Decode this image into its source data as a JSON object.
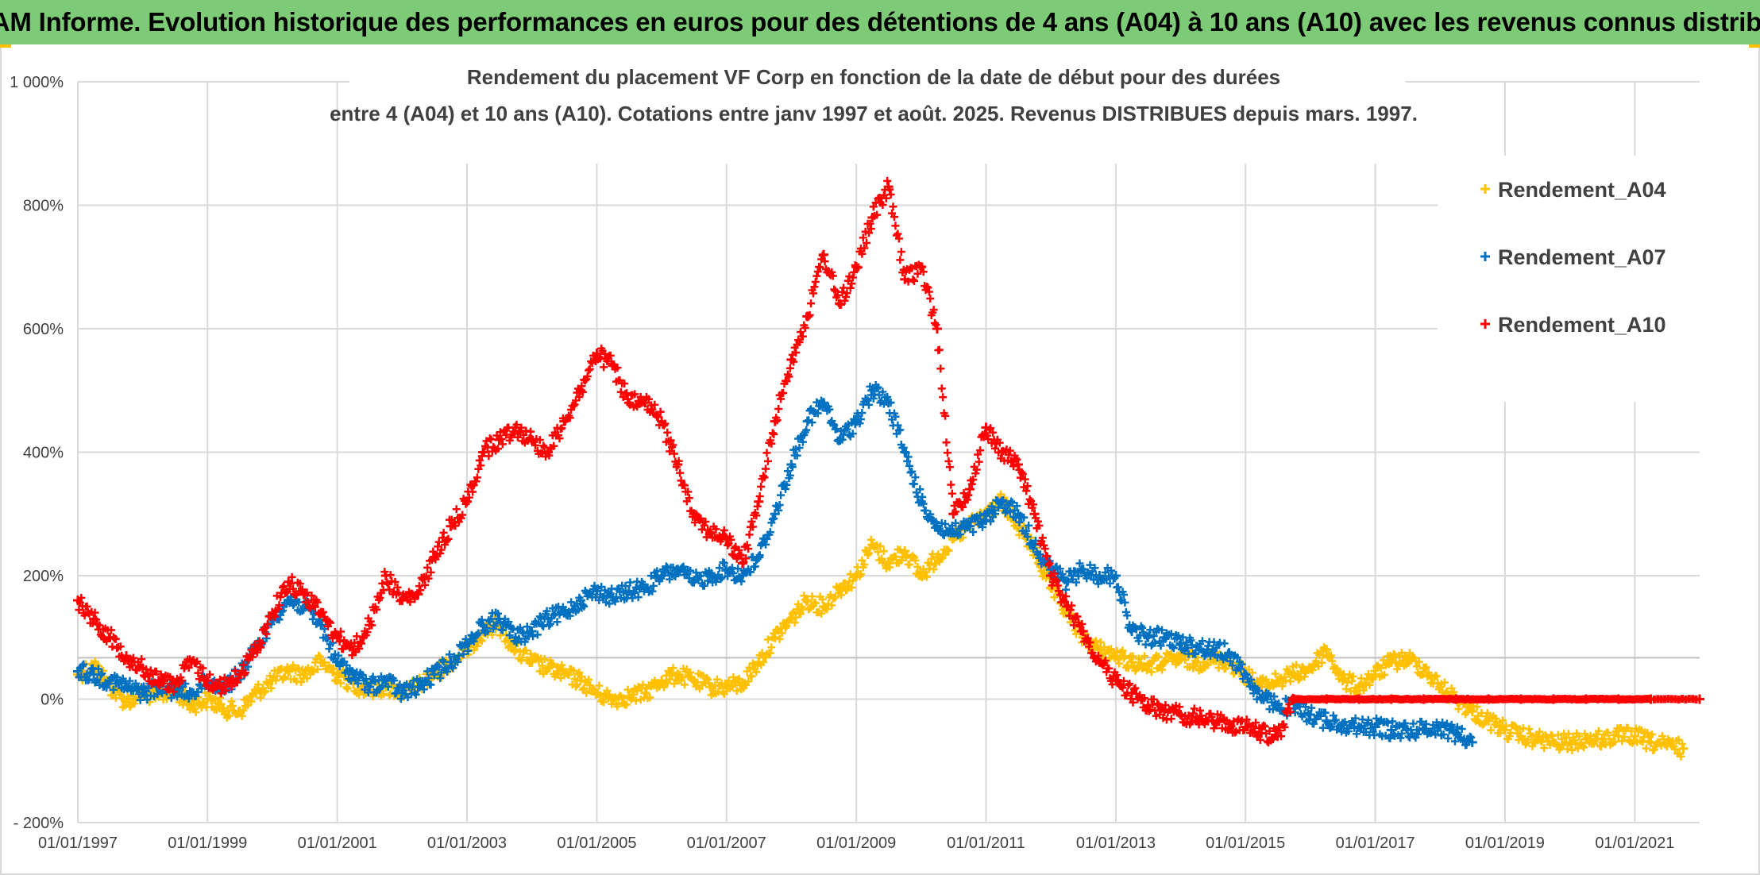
{
  "banner": {
    "title": "ADAM Informe. Evolution historique des performances en euros pour des détentions de 4 ans (A04) à 10 ans (A10) avec les revenus connus distribués"
  },
  "colors": {
    "banner_bg": "#7dcb76",
    "A04": "#ffc000",
    "A07": "#0070c0",
    "A10": "#ff0000",
    "gridline": "#d9d9d9"
  },
  "chart_data": {
    "type": "scatter",
    "title": "Rendement du placement VF Corp en fonction de la date de début pour des durées",
    "subtitle": "entre 4 (A04) et 10 ans (A10). Cotations entre janv 1997 et août. 2025. Revenus DISTRIBUES depuis mars. 1997.",
    "xlabel": "",
    "ylabel": "",
    "x_range": [
      "1997-01-01",
      "2022-01-01"
    ],
    "y_range": [
      -200,
      1000
    ],
    "y_ticks": [
      -200,
      0,
      200,
      400,
      600,
      800,
      1000
    ],
    "y_tick_labels": [
      "- 200%",
      "0%",
      "200%",
      "400%",
      "600%",
      "800%",
      "1 000%"
    ],
    "x_tick_labels": [
      "01/01/1997",
      "01/01/1999",
      "01/01/2001",
      "01/01/2003",
      "01/01/2005",
      "01/01/2007",
      "01/01/2009",
      "01/01/2011",
      "01/01/2013",
      "01/01/2015",
      "01/01/2017",
      "01/01/2019",
      "01/01/2021"
    ],
    "grid": true,
    "legend_position": "top-right",
    "marker": "+",
    "series": [
      {
        "name": "Rendement_A04",
        "color": "#ffc000",
        "points": [
          [
            "1997-01-01",
            40
          ],
          [
            "1997-04-01",
            55
          ],
          [
            "1997-07-01",
            20
          ],
          [
            "1997-10-01",
            -5
          ],
          [
            "1998-01-01",
            10
          ],
          [
            "1998-04-01",
            5
          ],
          [
            "1998-07-01",
            15
          ],
          [
            "1998-10-01",
            -10
          ],
          [
            "1999-01-01",
            0
          ],
          [
            "1999-04-01",
            -15
          ],
          [
            "1999-07-01",
            -20
          ],
          [
            "1999-10-01",
            10
          ],
          [
            "2000-01-01",
            30
          ],
          [
            "2000-04-01",
            45
          ],
          [
            "2000-07-01",
            40
          ],
          [
            "2000-10-01",
            60
          ],
          [
            "2001-01-01",
            40
          ],
          [
            "2001-04-01",
            25
          ],
          [
            "2001-07-01",
            15
          ],
          [
            "2001-10-01",
            20
          ],
          [
            "2002-01-01",
            10
          ],
          [
            "2002-04-01",
            20
          ],
          [
            "2002-07-01",
            40
          ],
          [
            "2002-10-01",
            60
          ],
          [
            "2003-01-01",
            80
          ],
          [
            "2003-04-01",
            110
          ],
          [
            "2003-07-01",
            120
          ],
          [
            "2003-10-01",
            80
          ],
          [
            "2004-01-01",
            60
          ],
          [
            "2004-04-01",
            50
          ],
          [
            "2004-07-01",
            40
          ],
          [
            "2004-10-01",
            30
          ],
          [
            "2005-01-01",
            10
          ],
          [
            "2005-04-01",
            0
          ],
          [
            "2005-07-01",
            5
          ],
          [
            "2005-10-01",
            10
          ],
          [
            "2006-01-01",
            30
          ],
          [
            "2006-04-01",
            40
          ],
          [
            "2006-07-01",
            30
          ],
          [
            "2006-10-01",
            20
          ],
          [
            "2007-01-01",
            20
          ],
          [
            "2007-04-01",
            25
          ],
          [
            "2007-07-01",
            60
          ],
          [
            "2007-10-01",
            100
          ],
          [
            "2008-01-01",
            130
          ],
          [
            "2008-04-01",
            160
          ],
          [
            "2008-07-01",
            150
          ],
          [
            "2008-10-01",
            180
          ],
          [
            "2009-01-01",
            200
          ],
          [
            "2009-04-01",
            250
          ],
          [
            "2009-07-01",
            220
          ],
          [
            "2009-10-01",
            240
          ],
          [
            "2010-01-01",
            200
          ],
          [
            "2010-04-01",
            230
          ],
          [
            "2010-07-01",
            260
          ],
          [
            "2010-10-01",
            280
          ],
          [
            "2011-01-01",
            300
          ],
          [
            "2011-04-01",
            320
          ],
          [
            "2011-07-01",
            280
          ],
          [
            "2011-10-01",
            240
          ],
          [
            "2012-01-01",
            180
          ],
          [
            "2012-04-01",
            140
          ],
          [
            "2012-07-01",
            100
          ],
          [
            "2012-10-01",
            80
          ],
          [
            "2013-01-01",
            70
          ],
          [
            "2013-04-01",
            60
          ],
          [
            "2013-07-01",
            55
          ],
          [
            "2013-10-01",
            60
          ],
          [
            "2014-01-01",
            65
          ],
          [
            "2014-04-01",
            60
          ],
          [
            "2014-07-01",
            65
          ],
          [
            "2014-10-01",
            60
          ],
          [
            "2015-01-01",
            40
          ],
          [
            "2015-04-01",
            20
          ],
          [
            "2015-07-01",
            30
          ],
          [
            "2015-10-01",
            40
          ],
          [
            "2016-01-01",
            50
          ],
          [
            "2016-04-01",
            80
          ],
          [
            "2016-07-01",
            30
          ],
          [
            "2016-10-01",
            20
          ],
          [
            "2017-01-01",
            40
          ],
          [
            "2017-04-01",
            60
          ],
          [
            "2017-07-01",
            65
          ],
          [
            "2017-10-01",
            50
          ],
          [
            "2018-01-01",
            20
          ],
          [
            "2018-04-01",
            0
          ],
          [
            "2018-07-01",
            -20
          ],
          [
            "2018-10-01",
            -35
          ],
          [
            "2019-01-01",
            -50
          ],
          [
            "2019-04-01",
            -60
          ],
          [
            "2019-07-01",
            -65
          ],
          [
            "2019-10-01",
            -70
          ],
          [
            "2020-01-01",
            -70
          ],
          [
            "2020-04-01",
            -65
          ],
          [
            "2020-07-01",
            -65
          ],
          [
            "2020-10-01",
            -60
          ],
          [
            "2021-01-01",
            -60
          ],
          [
            "2021-04-01",
            -70
          ],
          [
            "2021-07-01",
            -75
          ],
          [
            "2021-10-01",
            -80
          ]
        ]
      },
      {
        "name": "Rendement_A07",
        "color": "#0070c0",
        "points": [
          [
            "1997-01-01",
            45
          ],
          [
            "1997-04-01",
            40
          ],
          [
            "1997-07-01",
            30
          ],
          [
            "1997-10-01",
            20
          ],
          [
            "1998-01-01",
            10
          ],
          [
            "1998-04-01",
            20
          ],
          [
            "1998-07-01",
            15
          ],
          [
            "1998-10-01",
            10
          ],
          [
            "1999-01-01",
            30
          ],
          [
            "1999-04-01",
            20
          ],
          [
            "1999-07-01",
            40
          ],
          [
            "1999-10-01",
            80
          ],
          [
            "2000-01-01",
            130
          ],
          [
            "2000-04-01",
            160
          ],
          [
            "2000-07-01",
            150
          ],
          [
            "2000-10-01",
            120
          ],
          [
            "2001-01-01",
            60
          ],
          [
            "2001-04-01",
            40
          ],
          [
            "2001-07-01",
            20
          ],
          [
            "2001-10-01",
            30
          ],
          [
            "2002-01-01",
            10
          ],
          [
            "2002-04-01",
            20
          ],
          [
            "2002-07-01",
            40
          ],
          [
            "2002-10-01",
            60
          ],
          [
            "2003-01-01",
            90
          ],
          [
            "2003-04-01",
            120
          ],
          [
            "2003-07-01",
            130
          ],
          [
            "2003-10-01",
            100
          ],
          [
            "2004-01-01",
            110
          ],
          [
            "2004-04-01",
            130
          ],
          [
            "2004-07-01",
            140
          ],
          [
            "2004-10-01",
            160
          ],
          [
            "2005-01-01",
            175
          ],
          [
            "2005-04-01",
            165
          ],
          [
            "2005-07-01",
            175
          ],
          [
            "2005-10-01",
            180
          ],
          [
            "2006-01-01",
            200
          ],
          [
            "2006-04-01",
            210
          ],
          [
            "2006-07-01",
            190
          ],
          [
            "2006-10-01",
            200
          ],
          [
            "2007-01-01",
            210
          ],
          [
            "2007-04-01",
            200
          ],
          [
            "2007-07-01",
            230
          ],
          [
            "2007-10-01",
            300
          ],
          [
            "2008-01-01",
            380
          ],
          [
            "2008-04-01",
            450
          ],
          [
            "2008-07-01",
            480
          ],
          [
            "2008-10-01",
            420
          ],
          [
            "2009-01-01",
            450
          ],
          [
            "2009-04-01",
            500
          ],
          [
            "2009-07-01",
            480
          ],
          [
            "2009-10-01",
            400
          ],
          [
            "2010-01-01",
            320
          ],
          [
            "2010-04-01",
            280
          ],
          [
            "2010-07-01",
            270
          ],
          [
            "2010-10-01",
            280
          ],
          [
            "2011-01-01",
            290
          ],
          [
            "2011-04-01",
            320
          ],
          [
            "2011-07-01",
            300
          ],
          [
            "2011-10-01",
            250
          ],
          [
            "2012-01-01",
            210
          ],
          [
            "2012-04-01",
            190
          ],
          [
            "2012-07-01",
            210
          ],
          [
            "2012-10-01",
            200
          ],
          [
            "2013-01-01",
            200
          ],
          [
            "2013-04-01",
            110
          ],
          [
            "2013-07-01",
            100
          ],
          [
            "2013-10-01",
            100
          ],
          [
            "2014-01-01",
            90
          ],
          [
            "2014-04-01",
            85
          ],
          [
            "2014-07-01",
            80
          ],
          [
            "2014-10-01",
            75
          ],
          [
            "2015-01-01",
            40
          ],
          [
            "2015-04-01",
            0
          ],
          [
            "2015-07-01",
            -10
          ],
          [
            "2015-10-01",
            -15
          ],
          [
            "2016-01-01",
            -25
          ],
          [
            "2016-04-01",
            -35
          ],
          [
            "2016-07-01",
            -40
          ],
          [
            "2016-10-01",
            -45
          ],
          [
            "2017-01-01",
            -45
          ],
          [
            "2017-04-01",
            -50
          ],
          [
            "2017-07-01",
            -50
          ],
          [
            "2017-10-01",
            -48
          ],
          [
            "2018-01-01",
            -45
          ],
          [
            "2018-04-01",
            -55
          ],
          [
            "2018-07-01",
            -70
          ]
        ]
      },
      {
        "name": "Rendement_A10",
        "color": "#ff0000",
        "points": [
          [
            "1997-01-01",
            160
          ],
          [
            "1997-04-01",
            130
          ],
          [
            "1997-07-01",
            100
          ],
          [
            "1997-10-01",
            70
          ],
          [
            "1998-01-01",
            50
          ],
          [
            "1998-04-01",
            30
          ],
          [
            "1998-07-01",
            25
          ],
          [
            "1998-10-01",
            60
          ],
          [
            "1999-01-01",
            30
          ],
          [
            "1999-04-01",
            20
          ],
          [
            "1999-07-01",
            40
          ],
          [
            "1999-10-01",
            80
          ],
          [
            "2000-01-01",
            140
          ],
          [
            "2000-04-01",
            190
          ],
          [
            "2000-07-01",
            170
          ],
          [
            "2000-10-01",
            140
          ],
          [
            "2001-01-01",
            100
          ],
          [
            "2001-04-01",
            80
          ],
          [
            "2001-07-01",
            120
          ],
          [
            "2001-10-01",
            200
          ],
          [
            "2002-01-01",
            160
          ],
          [
            "2002-04-01",
            170
          ],
          [
            "2002-07-01",
            230
          ],
          [
            "2002-10-01",
            280
          ],
          [
            "2003-01-01",
            320
          ],
          [
            "2003-04-01",
            400
          ],
          [
            "2003-07-01",
            420
          ],
          [
            "2003-10-01",
            440
          ],
          [
            "2004-01-01",
            420
          ],
          [
            "2004-04-01",
            400
          ],
          [
            "2004-07-01",
            450
          ],
          [
            "2004-10-01",
            500
          ],
          [
            "2005-01-01",
            560
          ],
          [
            "2005-04-01",
            540
          ],
          [
            "2005-07-01",
            480
          ],
          [
            "2005-10-01",
            480
          ],
          [
            "2006-01-01",
            450
          ],
          [
            "2006-04-01",
            380
          ],
          [
            "2006-07-01",
            300
          ],
          [
            "2006-10-01",
            270
          ],
          [
            "2007-01-01",
            260
          ],
          [
            "2007-04-01",
            220
          ],
          [
            "2007-07-01",
            320
          ],
          [
            "2007-10-01",
            450
          ],
          [
            "2008-01-01",
            550
          ],
          [
            "2008-04-01",
            620
          ],
          [
            "2008-07-01",
            720
          ],
          [
            "2008-10-01",
            640
          ],
          [
            "2009-01-01",
            700
          ],
          [
            "2009-04-01",
            780
          ],
          [
            "2009-07-01",
            830
          ],
          [
            "2009-10-01",
            680
          ],
          [
            "2010-01-01",
            700
          ],
          [
            "2010-04-01",
            600
          ],
          [
            "2010-07-01",
            300
          ],
          [
            "2010-10-01",
            340
          ],
          [
            "2011-01-01",
            440
          ],
          [
            "2011-04-01",
            400
          ],
          [
            "2011-07-01",
            380
          ],
          [
            "2011-10-01",
            300
          ],
          [
            "2012-01-01",
            200
          ],
          [
            "2012-04-01",
            150
          ],
          [
            "2012-07-01",
            110
          ],
          [
            "2012-10-01",
            60
          ],
          [
            "2013-01-01",
            30
          ],
          [
            "2013-04-01",
            10
          ],
          [
            "2013-07-01",
            -10
          ],
          [
            "2013-10-01",
            -20
          ],
          [
            "2014-01-01",
            -25
          ],
          [
            "2014-04-01",
            -30
          ],
          [
            "2014-07-01",
            -35
          ],
          [
            "2014-10-01",
            -40
          ],
          [
            "2015-01-01",
            -45
          ],
          [
            "2015-04-01",
            -55
          ],
          [
            "2015-07-01",
            -60
          ],
          [
            "2015-10-01",
            0
          ],
          [
            "2016-04-01",
            0
          ],
          [
            "2016-10-01",
            0
          ],
          [
            "2017-04-01",
            0
          ],
          [
            "2017-10-01",
            0
          ],
          [
            "2018-04-01",
            0
          ],
          [
            "2018-10-01",
            0
          ],
          [
            "2019-04-01",
            0
          ],
          [
            "2019-10-01",
            0
          ],
          [
            "2020-04-01",
            0
          ],
          [
            "2020-10-01",
            0
          ],
          [
            "2021-04-01",
            0
          ],
          [
            "2022-01-01",
            0
          ]
        ]
      }
    ]
  }
}
